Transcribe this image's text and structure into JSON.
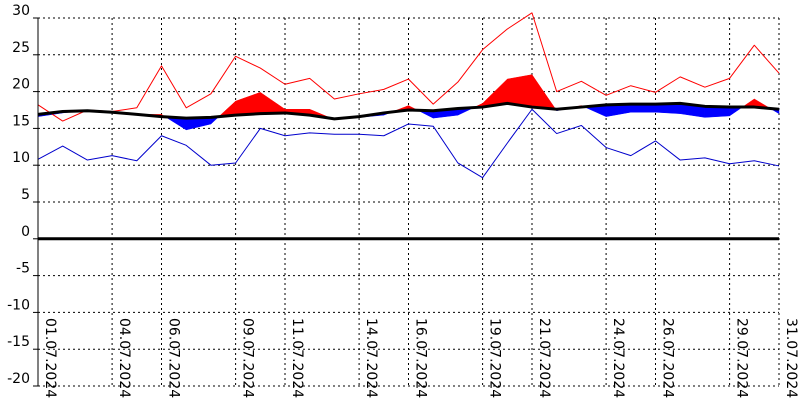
{
  "chart_data": {
    "type": "line",
    "title": "",
    "xlabel": "",
    "ylabel": "",
    "ylim": [
      -20,
      30
    ],
    "yticks": [
      30,
      25,
      20,
      15,
      10,
      5,
      0,
      -5,
      -10,
      -15,
      -20
    ],
    "grid": true,
    "legend": "none",
    "x": [
      "01.07",
      "02.07",
      "03.07",
      "04.07",
      "05.07",
      "06.07",
      "07.07",
      "08.07",
      "09.07",
      "10.07",
      "11.07",
      "12.07",
      "13.07",
      "14.07",
      "15.07",
      "16.07",
      "17.07",
      "18.07",
      "19.07",
      "20.07",
      "21.07",
      "22.07",
      "23.07",
      "24.07",
      "25.07",
      "26.07",
      "27.07",
      "28.07",
      "29.07",
      "30.07",
      "31.07"
    ],
    "xtick_labels": [
      {
        "index": 0,
        "label": "01.07.2024"
      },
      {
        "index": 3,
        "label": "04.07.2024"
      },
      {
        "index": 5,
        "label": "06.07.2024"
      },
      {
        "index": 8,
        "label": "09.07.2024"
      },
      {
        "index": 10,
        "label": "11.07.2024"
      },
      {
        "index": 13,
        "label": "14.07.2024"
      },
      {
        "index": 15,
        "label": "16.07.2024"
      },
      {
        "index": 18,
        "label": "19.07.2024"
      },
      {
        "index": 20,
        "label": "21.07.2024"
      },
      {
        "index": 23,
        "label": "24.07.2024"
      },
      {
        "index": 25,
        "label": "26.07.2024"
      },
      {
        "index": 28,
        "label": "29.07.2024"
      },
      {
        "index": 30,
        "label": "31.07.2024"
      }
    ],
    "series": [
      {
        "key": "max",
        "color": "#ff0000",
        "values": [
          18.2,
          16.0,
          17.5,
          17.3,
          17.8,
          23.5,
          17.8,
          19.7,
          24.8,
          23.2,
          21.0,
          21.8,
          19.0,
          19.7,
          20.3,
          21.7,
          18.3,
          21.3,
          25.7,
          28.5,
          30.7,
          20.0,
          21.4,
          19.5,
          20.8,
          19.9,
          22.0,
          20.6,
          21.8,
          26.3,
          22.5
        ]
      },
      {
        "key": "min",
        "color": "#0000cc",
        "values": [
          10.8,
          12.6,
          10.7,
          11.3,
          10.6,
          14.0,
          12.7,
          10.0,
          10.3,
          15.0,
          14.0,
          14.4,
          14.2,
          14.2,
          14.0,
          15.6,
          15.3,
          10.3,
          8.3,
          13.0,
          17.6,
          14.3,
          15.4,
          12.4,
          11.3,
          13.3,
          10.7,
          11.0,
          10.2,
          10.6,
          9.9
        ]
      },
      {
        "key": "avg",
        "color": "#ff0000",
        "values": [
          16.6,
          17.1,
          17.5,
          17.3,
          16.9,
          16.9,
          14.8,
          15.6,
          18.7,
          19.9,
          17.6,
          17.6,
          16.2,
          16.5,
          16.8,
          18.1,
          16.4,
          16.8,
          18.4,
          21.7,
          22.3,
          17.4,
          18.1,
          16.6,
          17.2,
          17.2,
          17.0,
          16.5,
          16.7,
          19.0,
          17.0
        ]
      },
      {
        "key": "normal",
        "color": "#000000",
        "values": [
          16.9,
          17.3,
          17.4,
          17.2,
          16.9,
          16.6,
          16.4,
          16.5,
          16.8,
          17.0,
          17.1,
          16.8,
          16.3,
          16.6,
          17.1,
          17.5,
          17.4,
          17.7,
          17.9,
          18.4,
          17.9,
          17.6,
          17.9,
          18.2,
          18.3,
          18.3,
          18.4,
          18.0,
          17.9,
          17.9,
          17.6
        ]
      }
    ],
    "fill_above_color": "#ff0000",
    "fill_below_color": "#0000ff"
  }
}
